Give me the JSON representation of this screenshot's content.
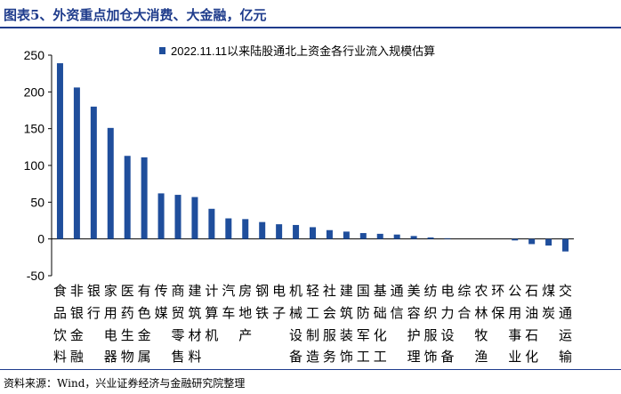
{
  "figure": {
    "title": "图表5、外资重点加仓大消费、大金融，亿元",
    "source": "资料来源：Wind，兴业证券经济与金融研究院整理"
  },
  "chart_data": {
    "type": "bar",
    "series": [
      {
        "name": "2022.11.11以来陆股通北上资金各行业流入规模估算",
        "color": "#1f4e9c",
        "values": [
          239,
          206,
          180,
          151,
          113,
          111,
          62,
          60,
          57,
          41,
          28,
          27,
          23,
          20,
          19,
          16,
          12,
          10,
          8,
          7,
          6,
          4,
          2,
          1,
          0,
          0,
          0,
          -2,
          -7,
          -9,
          -17,
          -20
        ]
      }
    ],
    "categories": [
      "食品饮料",
      "非银金融",
      "银行",
      "家用电器",
      "医药生物",
      "有色金属",
      "传媒",
      "商贸零售",
      "建筑材料",
      "计算机",
      "汽车",
      "房地产",
      "钢铁",
      "电子",
      "机械设备",
      "轻工制造",
      "社会服务",
      "建筑装饰",
      "国防军工",
      "基础化工",
      "通信",
      "美容护理",
      "纺织服饰",
      "电力设备",
      "综合",
      "农林牧渔",
      "环保",
      "公用事业",
      "石油石化",
      "煤炭",
      "交通运输",
      "  "
    ],
    "category_labels": [
      [
        "食",
        "品",
        "饮",
        "料"
      ],
      [
        "非",
        "银",
        "金",
        "融"
      ],
      [
        "银",
        "行",
        "",
        ""
      ],
      [
        "家",
        "用",
        "电",
        "器"
      ],
      [
        "医",
        "药",
        "生",
        "物"
      ],
      [
        "有",
        "色",
        "金",
        "属"
      ],
      [
        "传",
        "媒",
        "",
        ""
      ],
      [
        "商",
        "贸",
        "零",
        "售"
      ],
      [
        "建",
        "筑",
        "材",
        "料"
      ],
      [
        "计",
        "算",
        "机",
        ""
      ],
      [
        "汽",
        "车",
        "",
        ""
      ],
      [
        "房",
        "地",
        "产",
        ""
      ],
      [
        "钢",
        "铁",
        "",
        ""
      ],
      [
        "电",
        "子",
        "",
        ""
      ],
      [
        "机",
        "械",
        "设",
        "备"
      ],
      [
        "轻",
        "工",
        "制",
        "造"
      ],
      [
        "社",
        "会",
        "服",
        "务"
      ],
      [
        "建",
        "筑",
        "装",
        "饰"
      ],
      [
        "国",
        "防",
        "军",
        "工"
      ],
      [
        "基",
        "础",
        "化",
        "工"
      ],
      [
        "通",
        "信",
        "",
        ""
      ],
      [
        "美",
        "容",
        "护",
        "理"
      ],
      [
        "纺",
        "织",
        "服",
        "饰"
      ],
      [
        "电",
        "力",
        "设",
        "备"
      ],
      [
        "综",
        "合",
        "",
        ""
      ],
      [
        "农",
        "林",
        "牧",
        "渔"
      ],
      [
        "环",
        "保",
        "",
        ""
      ],
      [
        "公",
        "用",
        "事",
        "业"
      ],
      [
        "石",
        "油",
        "石",
        "化"
      ],
      [
        "煤",
        "炭",
        "",
        ""
      ],
      [
        "交",
        "通",
        "运",
        "输"
      ]
    ],
    "ylim": [
      -50,
      250
    ],
    "yticks": [
      -50,
      0,
      50,
      100,
      150,
      200,
      250
    ],
    "grid": false,
    "legend_position": "top"
  }
}
